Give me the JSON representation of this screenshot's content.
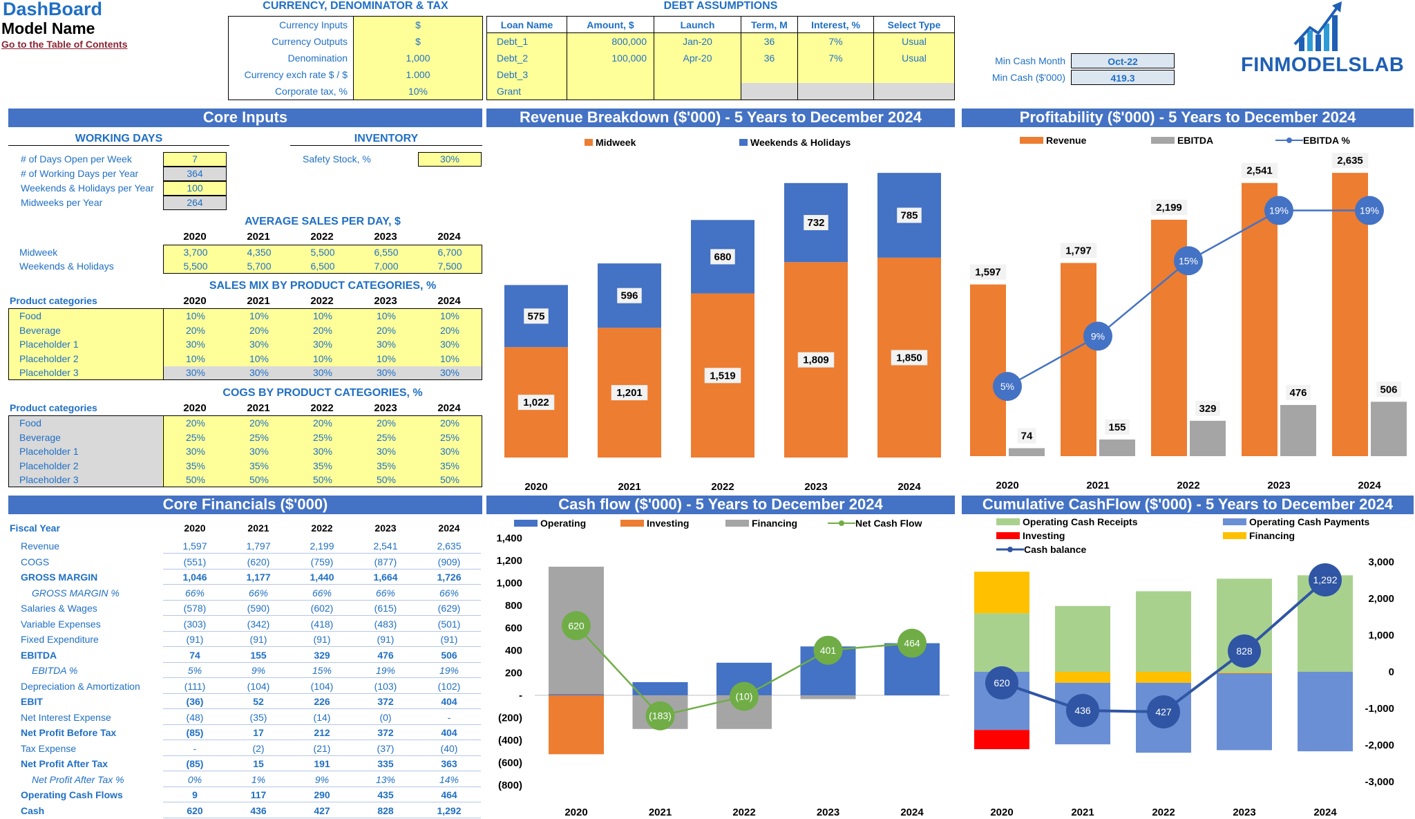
{
  "header": {
    "title": "DashBoard",
    "model": "Model Name",
    "toc_link": "Go to the Table of Contents"
  },
  "currency": {
    "heading": "CURRENCY, DENOMINATOR & TAX",
    "rows": [
      {
        "label": "Currency Inputs",
        "value": "$"
      },
      {
        "label": "Currency Outputs",
        "value": "$"
      },
      {
        "label": "Denomination",
        "value": "1,000"
      },
      {
        "label": "Currency exch rate $ / $",
        "value": "1.000"
      },
      {
        "label": "Corporate tax, %",
        "value": "10%"
      }
    ]
  },
  "debt": {
    "heading": "DEBT ASSUMPTIONS",
    "columns": [
      "Loan Name",
      "Amount, $",
      "Launch",
      "Term, M",
      "Interest, %",
      "Select Type"
    ],
    "rows": [
      [
        "Debt_1",
        "800,000",
        "Jan-20",
        "36",
        "7%",
        "Usual"
      ],
      [
        "Debt_2",
        "100,000",
        "Apr-20",
        "36",
        "7%",
        "Usual"
      ],
      [
        "Debt_3",
        "",
        "",
        "",
        "",
        ""
      ],
      [
        "Grant",
        "",
        "",
        "",
        "",
        ""
      ]
    ]
  },
  "min_cash": {
    "month_label": "Min Cash Month",
    "month_value": "Oct-22",
    "cash_label": "Min Cash ($'000)",
    "cash_value": "419.3"
  },
  "logo": {
    "text": "FINMODELSLAB",
    "icon": "rising-bar-chart-arrow-icon"
  },
  "core_inputs": {
    "title": "Core Inputs",
    "working_days": {
      "heading": "WORKING DAYS",
      "rows": [
        {
          "label": "# of Days Open per Week",
          "value": "7"
        },
        {
          "label": "# of Working Days per Year",
          "value": "364"
        },
        {
          "label": "Weekends & Holidays per Year",
          "value": "100"
        },
        {
          "label": "Midweeks per Year",
          "value": "264"
        }
      ]
    },
    "inventory": {
      "heading": "INVENTORY",
      "label": "Safety Stock, %",
      "value": "30%"
    },
    "years": [
      "2020",
      "2021",
      "2022",
      "2023",
      "2024"
    ],
    "avg_sales": {
      "heading": "AVERAGE SALES PER DAY, $",
      "rows": [
        {
          "label": "Midweek",
          "values": [
            "3,700",
            "4,350",
            "5,500",
            "6,550",
            "6,700"
          ]
        },
        {
          "label": "Weekends & Holidays",
          "values": [
            "5,500",
            "5,700",
            "6,500",
            "7,000",
            "7,500"
          ]
        }
      ]
    },
    "sales_mix": {
      "heading": "SALES MIX BY PRODUCT CATEGORIES, %",
      "cat_label": "Product categories",
      "rows": [
        {
          "label": "Food",
          "values": [
            "10%",
            "10%",
            "10%",
            "10%",
            "10%"
          ]
        },
        {
          "label": "Beverage",
          "values": [
            "20%",
            "20%",
            "20%",
            "20%",
            "20%"
          ]
        },
        {
          "label": "Placeholder 1",
          "values": [
            "30%",
            "30%",
            "30%",
            "30%",
            "30%"
          ]
        },
        {
          "label": "Placeholder 2",
          "values": [
            "10%",
            "10%",
            "10%",
            "10%",
            "10%"
          ]
        },
        {
          "label": "Placeholder 3",
          "values": [
            "30%",
            "30%",
            "30%",
            "30%",
            "30%"
          ]
        }
      ]
    },
    "cogs": {
      "heading": "COGS BY PRODUCT CATEGORIES, %",
      "cat_label": "Product categories",
      "rows": [
        {
          "label": "Food",
          "values": [
            "20%",
            "20%",
            "20%",
            "20%",
            "20%"
          ]
        },
        {
          "label": "Beverage",
          "values": [
            "25%",
            "25%",
            "25%",
            "25%",
            "25%"
          ]
        },
        {
          "label": "Placeholder 1",
          "values": [
            "30%",
            "30%",
            "30%",
            "30%",
            "30%"
          ]
        },
        {
          "label": "Placeholder 2",
          "values": [
            "35%",
            "35%",
            "35%",
            "35%",
            "35%"
          ]
        },
        {
          "label": "Placeholder 3",
          "values": [
            "50%",
            "50%",
            "50%",
            "50%",
            "50%"
          ]
        }
      ]
    }
  },
  "core_financials": {
    "title": "Core Financials ($'000)",
    "fiscal_label": "Fiscal Year",
    "years": [
      "2020",
      "2021",
      "2022",
      "2023",
      "2024"
    ],
    "rows": [
      {
        "label": "Revenue",
        "style": "",
        "values": [
          "1,597",
          "1,797",
          "2,199",
          "2,541",
          "2,635"
        ]
      },
      {
        "label": "COGS",
        "style": "",
        "values": [
          "(551)",
          "(620)",
          "(759)",
          "(877)",
          "(909)"
        ]
      },
      {
        "label": "GROSS MARGIN",
        "style": "bold",
        "values": [
          "1,046",
          "1,177",
          "1,440",
          "1,664",
          "1,726"
        ]
      },
      {
        "label": "GROSS MARGIN %",
        "style": "it",
        "values": [
          "66%",
          "66%",
          "66%",
          "66%",
          "66%"
        ]
      },
      {
        "label": "Salaries & Wages",
        "style": "",
        "values": [
          "(578)",
          "(590)",
          "(602)",
          "(615)",
          "(629)"
        ]
      },
      {
        "label": "Variable Expenses",
        "style": "",
        "values": [
          "(303)",
          "(342)",
          "(418)",
          "(483)",
          "(501)"
        ]
      },
      {
        "label": "Fixed Expenditure",
        "style": "",
        "values": [
          "(91)",
          "(91)",
          "(91)",
          "(91)",
          "(91)"
        ]
      },
      {
        "label": "EBITDA",
        "style": "bold",
        "values": [
          "74",
          "155",
          "329",
          "476",
          "506"
        ]
      },
      {
        "label": "EBITDA %",
        "style": "it",
        "values": [
          "5%",
          "9%",
          "15%",
          "19%",
          "19%"
        ]
      },
      {
        "label": "Depreciation & Amortization",
        "style": "",
        "values": [
          "(111)",
          "(104)",
          "(104)",
          "(103)",
          "(102)"
        ]
      },
      {
        "label": "EBIT",
        "style": "bold",
        "values": [
          "(36)",
          "52",
          "226",
          "372",
          "404"
        ]
      },
      {
        "label": "Net Interest Expense",
        "style": "",
        "values": [
          "(48)",
          "(35)",
          "(14)",
          "(0)",
          "-"
        ]
      },
      {
        "label": "Net Profit Before Tax",
        "style": "bold",
        "values": [
          "(85)",
          "17",
          "212",
          "372",
          "404"
        ]
      },
      {
        "label": "Tax Expense",
        "style": "",
        "values": [
          "-",
          "(2)",
          "(21)",
          "(37)",
          "(40)"
        ]
      },
      {
        "label": "Net Profit After Tax",
        "style": "bold",
        "values": [
          "(85)",
          "15",
          "191",
          "335",
          "363"
        ]
      },
      {
        "label": "Net Profit After Tax %",
        "style": "it",
        "values": [
          "0%",
          "1%",
          "9%",
          "13%",
          "14%"
        ]
      },
      {
        "label": "Operating Cash Flows",
        "style": "bold",
        "values": [
          "9",
          "117",
          "290",
          "435",
          "464"
        ]
      },
      {
        "label": "Cash",
        "style": "bold",
        "values": [
          "620",
          "436",
          "427",
          "828",
          "1,292"
        ]
      }
    ]
  },
  "chart_data": [
    {
      "type": "bar",
      "title": "Revenue Breakdown ($'000) - 5 Years to December 2024",
      "stacked": true,
      "categories": [
        "2020",
        "2021",
        "2022",
        "2023",
        "2024"
      ],
      "series": [
        {
          "name": "Midweek",
          "values": [
            1022,
            1201,
            1519,
            1809,
            1850
          ],
          "color": "#ed7d31"
        },
        {
          "name": "Weekends & Holidays",
          "values": [
            575,
            596,
            680,
            732,
            785
          ],
          "color": "#4472c4"
        }
      ],
      "legend": "top"
    },
    {
      "type": "bar",
      "title": "Profitability ($'000) - 5 Years to December 2024",
      "categories": [
        "2020",
        "2021",
        "2022",
        "2023",
        "2024"
      ],
      "series": [
        {
          "name": "Revenue",
          "values": [
            1597,
            1797,
            2199,
            2541,
            2635
          ],
          "color": "#ed7d31"
        },
        {
          "name": "EBITDA",
          "values": [
            74,
            155,
            329,
            476,
            506
          ],
          "color": "#a5a5a5"
        },
        {
          "name": "EBITDA %",
          "type": "line",
          "values": [
            5,
            9,
            15,
            19,
            19
          ],
          "labels": [
            "5%",
            "9%",
            "15%",
            "19%",
            "19%"
          ],
          "color": "#4472c4"
        }
      ],
      "legend": "top"
    },
    {
      "type": "bar",
      "title": "Cash flow ($'000) - 5 Years to December 2024",
      "categories": [
        "2020",
        "2021",
        "2022",
        "2023",
        "2024"
      ],
      "ylim": [
        -800,
        1400
      ],
      "yticks": [
        "1,400",
        "1,200",
        "1,000",
        "800",
        "600",
        "400",
        "200",
        "-",
        "(200)",
        "(400)",
        "(600)",
        "(800)"
      ],
      "series": [
        {
          "name": "Operating",
          "values": [
            9,
            117,
            290,
            435,
            464
          ],
          "color": "#4472c4"
        },
        {
          "name": "Investing",
          "values": [
            -525,
            0,
            0,
            0,
            0
          ],
          "color": "#ed7d31"
        },
        {
          "name": "Financing",
          "values": [
            1136,
            -300,
            -300,
            -34,
            0
          ],
          "color": "#a5a5a5"
        },
        {
          "name": "Net Cash Flow",
          "type": "line",
          "values": [
            620,
            -183,
            -10,
            401,
            464
          ],
          "labels": [
            "620",
            "(183)",
            "(10)",
            "401",
            "464"
          ],
          "color": "#70ad47"
        }
      ],
      "legend": "top"
    },
    {
      "type": "bar",
      "title": "Cumulative CashFlow ($'000) - 5 Years to December 2024",
      "categories": [
        "2020",
        "2021",
        "2022",
        "2023",
        "2024"
      ],
      "ylim": [
        -3000,
        3000
      ],
      "yticks": [
        "3,000",
        "2,000",
        "1,000",
        "0",
        "-1,000",
        "-2,000",
        "-3,000"
      ],
      "series": [
        {
          "name": "Operating Cash Receipts",
          "values": [
            1597,
            1797,
            2199,
            2541,
            2635
          ],
          "color": "#a9d18e"
        },
        {
          "name": "Operating Cash Payments",
          "values": [
            -1588,
            -1680,
            -1909,
            -2106,
            -2171
          ],
          "color": "#6b8fd4"
        },
        {
          "name": "Investing",
          "values": [
            -525,
            0,
            0,
            0,
            0
          ],
          "color": "#ff0000"
        },
        {
          "name": "Financing",
          "values": [
            1136,
            -300,
            -300,
            -34,
            0
          ],
          "color": "#ffc000"
        },
        {
          "name": "Cash balance",
          "type": "line",
          "values": [
            620,
            436,
            427,
            828,
            1292
          ],
          "labels": [
            "620",
            "436",
            "427",
            "828",
            "1,292"
          ],
          "color": "#2f55a4"
        }
      ],
      "legend": "top"
    }
  ]
}
